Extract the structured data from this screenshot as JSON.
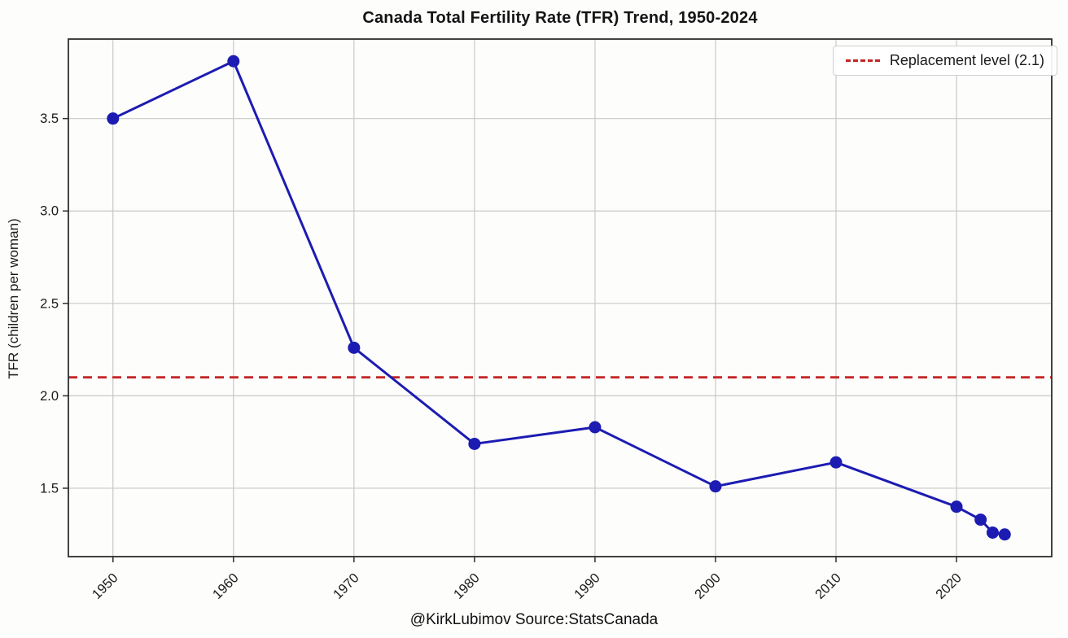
{
  "chart_data": {
    "type": "line",
    "title": "Canada Total Fertility Rate (TFR) Trend, 1950-2024",
    "xlabel": "",
    "ylabel": "TFR (children per woman)",
    "footer": "@KirkLubimov Source:StatsCanada",
    "x": [
      1950,
      1960,
      1970,
      1980,
      1990,
      2000,
      2010,
      2020,
      2022,
      2023,
      2024
    ],
    "series": [
      {
        "name": "TFR",
        "values": [
          3.5,
          3.81,
          2.26,
          1.74,
          1.83,
          1.51,
          1.64,
          1.4,
          1.33,
          1.26,
          1.25
        ]
      }
    ],
    "reference_line": {
      "label": "Replacement level (2.1)",
      "value": 2.1
    },
    "xticks": [
      1950,
      1960,
      1970,
      1980,
      1990,
      2000,
      2010,
      2020
    ],
    "yticks": [
      1.5,
      2.0,
      2.5,
      3.0,
      3.5
    ],
    "xlim": [
      1946.3,
      2027.9
    ],
    "ylim": [
      1.13,
      3.93
    ],
    "grid": true,
    "legend_position": "upper right",
    "colors": {
      "line": "#1c1cb2",
      "replacement": "#c32626",
      "grid": "#c8c8c8",
      "frame": "#2e2e2e",
      "text": "#1b1b1b"
    }
  }
}
